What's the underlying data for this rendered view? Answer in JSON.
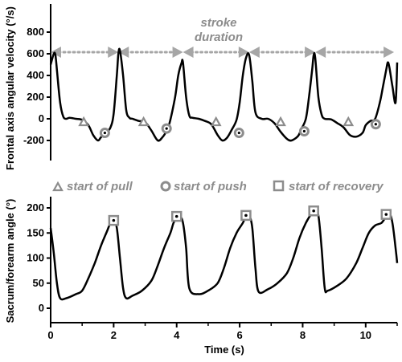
{
  "chart_data": [
    {
      "type": "line",
      "ylabel": "Frontal axis angular velocity (°/s)",
      "xlim": [
        0,
        11
      ],
      "ylim": [
        -300,
        900
      ],
      "yticks": [
        "800",
        "600",
        "400",
        "200",
        "0",
        "-200"
      ],
      "series": [
        {
          "x": [
            0,
            0.1,
            0.15,
            0.2,
            0.3,
            0.4,
            0.5,
            0.6,
            0.8,
            1.0,
            1.2,
            1.35,
            1.5,
            1.6,
            1.75,
            1.9,
            2.0,
            2.1,
            2.15,
            2.2,
            2.3,
            2.4,
            2.5,
            2.6,
            2.8,
            3.0,
            3.2,
            3.4,
            3.55,
            3.7,
            3.8,
            3.95,
            4.05,
            4.15,
            4.2,
            4.3,
            4.4,
            4.5,
            4.7,
            4.9,
            5.1,
            5.3,
            5.45,
            5.6,
            5.75,
            5.9,
            6.0,
            6.1,
            6.2,
            6.3,
            6.4,
            6.5,
            6.7,
            6.9,
            7.1,
            7.3,
            7.5,
            7.65,
            7.85,
            7.95,
            8.1,
            8.2,
            8.3,
            8.35,
            8.4,
            8.5,
            8.6,
            8.7,
            8.9,
            9.1,
            9.3,
            9.5,
            9.7,
            9.9,
            10.0,
            10.15,
            10.3,
            10.45,
            10.55,
            10.65,
            10.7,
            10.75,
            10.85,
            10.95,
            11.0
          ],
          "y": [
            500,
            600,
            590,
            450,
            150,
            20,
            0,
            10,
            0,
            -10,
            -60,
            -150,
            -200,
            -170,
            -130,
            -80,
            50,
            400,
            600,
            630,
            400,
            80,
            10,
            0,
            -20,
            -30,
            -110,
            -200,
            -170,
            -100,
            -10,
            200,
            400,
            510,
            520,
            200,
            30,
            10,
            0,
            -20,
            -50,
            -150,
            -200,
            -175,
            -100,
            -10,
            150,
            400,
            560,
            590,
            350,
            60,
            0,
            0,
            -40,
            -120,
            -185,
            -200,
            -160,
            -100,
            0,
            200,
            450,
            590,
            560,
            200,
            40,
            0,
            -5,
            -40,
            -80,
            -150,
            -165,
            -130,
            -60,
            -20,
            0,
            150,
            300,
            450,
            520,
            480,
            300,
            150,
            520
          ]
        }
      ],
      "markers": [
        {
          "kind": "start of pull",
          "x": 1.05,
          "y": -30
        },
        {
          "kind": "start of push",
          "x": 1.72,
          "y": -130
        },
        {
          "kind": "start of pull",
          "x": 2.95,
          "y": -30
        },
        {
          "kind": "start of push",
          "x": 3.68,
          "y": -90
        },
        {
          "kind": "start of pull",
          "x": 5.25,
          "y": -30
        },
        {
          "kind": "start of push",
          "x": 5.98,
          "y": -130
        },
        {
          "kind": "start of pull",
          "x": 7.3,
          "y": -30
        },
        {
          "kind": "start of push",
          "x": 8.05,
          "y": -115
        },
        {
          "kind": "start of pull",
          "x": 9.45,
          "y": -30
        },
        {
          "kind": "start of push",
          "x": 10.32,
          "y": -50
        }
      ],
      "stroke_duration": {
        "label_line1": "stroke",
        "label_line2": "duration",
        "y": 600,
        "boundaries": [
          0,
          2.15,
          4.2,
          6.3,
          8.4,
          10.9
        ]
      }
    },
    {
      "type": "line",
      "ylabel": "Sacrum/forearm angle (°)",
      "xlabel": "Time (s)",
      "xlim": [
        0,
        11
      ],
      "ylim": [
        -25,
        230
      ],
      "xticks": [
        "0",
        "2",
        "4",
        "6",
        "8",
        "10"
      ],
      "yticks": [
        "200",
        "150",
        "100",
        "50",
        "0"
      ],
      "series": [
        {
          "x": [
            0,
            0.1,
            0.2,
            0.3,
            0.5,
            0.8,
            1.0,
            1.2,
            1.4,
            1.6,
            1.8,
            1.9,
            2.0,
            2.1,
            2.2,
            2.3,
            2.4,
            2.6,
            2.9,
            3.2,
            3.4,
            3.6,
            3.8,
            3.9,
            4.0,
            4.1,
            4.2,
            4.3,
            4.4,
            4.7,
            5.0,
            5.3,
            5.5,
            5.7,
            5.9,
            6.1,
            6.2,
            6.3,
            6.4,
            6.5,
            6.6,
            6.9,
            7.2,
            7.5,
            7.7,
            7.9,
            8.1,
            8.3,
            8.4,
            8.5,
            8.6,
            8.7,
            8.8,
            9.1,
            9.4,
            9.7,
            9.9,
            10.1,
            10.3,
            10.5,
            10.65,
            10.75,
            10.85,
            10.95,
            11.0
          ],
          "y": [
            160,
            110,
            50,
            20,
            20,
            28,
            35,
            60,
            90,
            125,
            155,
            170,
            175,
            160,
            100,
            40,
            20,
            25,
            35,
            55,
            85,
            120,
            150,
            170,
            180,
            183,
            170,
            120,
            40,
            28,
            35,
            50,
            80,
            120,
            150,
            170,
            183,
            185,
            160,
            80,
            33,
            38,
            50,
            70,
            100,
            140,
            170,
            190,
            194,
            185,
            120,
            40,
            35,
            45,
            60,
            90,
            120,
            150,
            165,
            170,
            183,
            190,
            170,
            120,
            90
          ]
        }
      ],
      "markers": [
        {
          "kind": "start of recovery",
          "x": 2.0,
          "y": 175
        },
        {
          "kind": "start of recovery",
          "x": 4.0,
          "y": 183
        },
        {
          "kind": "start of recovery",
          "x": 6.2,
          "y": 185
        },
        {
          "kind": "start of recovery",
          "x": 8.35,
          "y": 194
        },
        {
          "kind": "start of recovery",
          "x": 10.65,
          "y": 187
        }
      ]
    }
  ],
  "legend": {
    "pull_label": "start of pull",
    "push_label": "start of push",
    "recovery_label": "start of recovery"
  },
  "colors": {
    "line": "#000000",
    "marker": "#8c8c8c",
    "arrow": "#a6a6a6",
    "annotation": "#8c8c8c"
  }
}
